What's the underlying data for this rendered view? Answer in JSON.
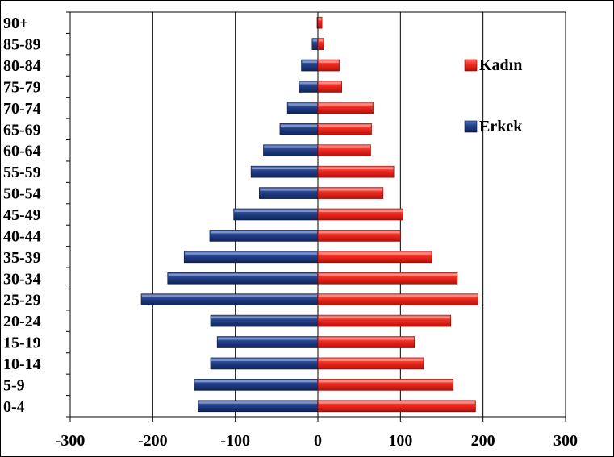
{
  "chart_data": {
    "type": "bar",
    "orientation": "horizontal",
    "categories": [
      "0-4",
      "5-9",
      "10-14",
      "15-19",
      "20-24",
      "25-29",
      "30-34",
      "35-39",
      "40-44",
      "45-49",
      "50-54",
      "55-59",
      "60-64",
      "65-69",
      "70-74",
      "75-79",
      "80-84",
      "85-89",
      "90+"
    ],
    "series": [
      {
        "name": "Erkek",
        "color": "#1f3a7a",
        "values": [
          -145,
          -150,
          -130,
          -122,
          -130,
          -214,
          -182,
          -162,
          -131,
          -102,
          -71,
          -81,
          -66,
          -46,
          -37,
          -23,
          -20,
          -7,
          -1
        ]
      },
      {
        "name": "Kadın",
        "color": "#e8261c",
        "values": [
          191,
          164,
          128,
          117,
          161,
          194,
          169,
          138,
          100,
          103,
          79,
          92,
          64,
          65,
          67,
          29,
          26,
          7,
          5
        ]
      }
    ],
    "xlim": [
      -300,
      300
    ],
    "xticks": [
      "-300",
      "-200",
      "-100",
      "0",
      "100",
      "200",
      "300"
    ],
    "xtick_values": [
      -300,
      -200,
      -100,
      0,
      100,
      200,
      300
    ],
    "grid": "vertical",
    "legend": "right",
    "legend_labels": [
      "Kadın",
      "Erkek"
    ]
  }
}
